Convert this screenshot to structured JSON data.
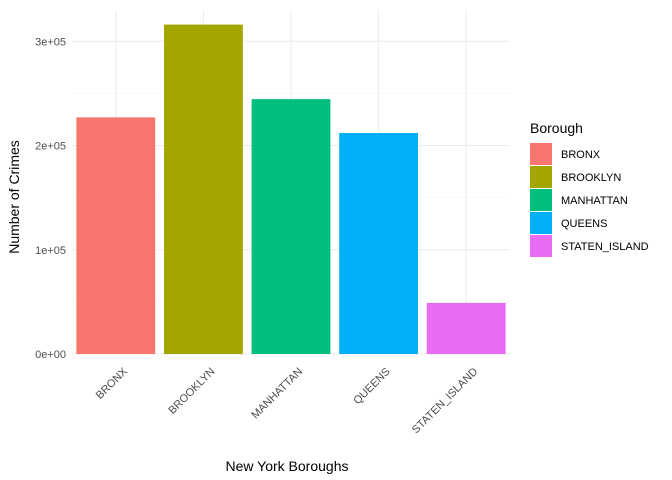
{
  "chart_data": {
    "type": "bar",
    "title": "",
    "xlabel": "New York Boroughs",
    "ylabel": "Number of Crimes",
    "categories": [
      "BRONX",
      "BROOKLYN",
      "MANHATTAN",
      "QUEENS",
      "STATEN_ISLAND"
    ],
    "values": [
      227000,
      316000,
      244500,
      212000,
      49000
    ],
    "colors": [
      "#F8766D",
      "#A3A500",
      "#00BF7D",
      "#00B0F6",
      "#E76BF3"
    ],
    "ylim": [
      0,
      330000
    ],
    "yticks": [
      0,
      100000,
      200000,
      300000
    ],
    "ytick_labels": [
      "0e+00",
      "1e+05",
      "2e+05",
      "3e+05"
    ],
    "grid": true,
    "legend": {
      "title": "Borough",
      "position": "right",
      "entries": [
        "BRONX",
        "BROOKLYN",
        "MANHATTAN",
        "QUEENS",
        "STATEN_ISLAND"
      ]
    }
  }
}
